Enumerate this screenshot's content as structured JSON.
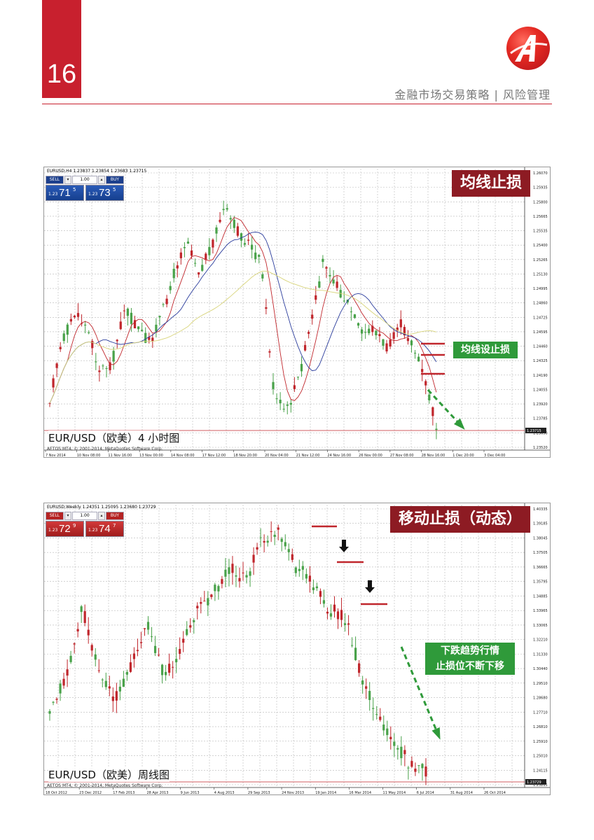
{
  "page": {
    "number": "16",
    "header_title": "金融市场交易策略 | 风险管理"
  },
  "charts": [
    {
      "id": "ma-stop",
      "info_line": "EURUSD,H4  1.23837 1.23854 1.23683 1.23715",
      "trade": {
        "sell": "SELL",
        "buy": "BUY",
        "lot": "1.00",
        "sell_small": "1.23",
        "sell_big": "71",
        "sell_sup": "5",
        "buy_small": "1.23",
        "buy_big": "73",
        "buy_sup": "5"
      },
      "badge": "均线止损",
      "annotation": "均线设止损",
      "caption": "EUR/USD（欧美）4 小时图",
      "copyright": "AETOS MT4, © 2001-2014, MetaQuotes Software Corp.",
      "y_ticks": [
        "1.26070",
        "1.25935",
        "1.25800",
        "1.25665",
        "1.25535",
        "1.25400",
        "1.25265",
        "1.25130",
        "1.24995",
        "1.24860",
        "1.24725",
        "1.24595",
        "1.24460",
        "1.24325",
        "1.24190",
        "1.24055",
        "1.23920",
        "1.23785",
        "1.23650",
        "1.23520"
      ],
      "current_price": "1.23715",
      "x_ticks": [
        "7 Nov 2014",
        "10 Nov 08:00",
        "11 Nov 16:00",
        "13 Nov 00:00",
        "14 Nov 08:00",
        "17 Nov 12:00",
        "18 Nov 20:00",
        "20 Nov 04:00",
        "21 Nov 12:00",
        "24 Nov 16:00",
        "26 Nov 00:00",
        "27 Nov 08:00",
        "28 Nov 16:00",
        "1 Dec 20:00",
        "3 Dec 04:00"
      ]
    },
    {
      "id": "trailing-stop",
      "info_line": "EURUSD,Weekly  1.24351 1.25095 1.23680 1.23729",
      "trade": {
        "sell": "SELL",
        "buy": "BUY",
        "lot": "1.00",
        "sell_small": "1.23",
        "sell_big": "72",
        "sell_sup": "9",
        "buy_small": "1.23",
        "buy_big": "74",
        "buy_sup": "7"
      },
      "badge": "移动止损（动态）",
      "annotation_line1": "下跌趋势行情",
      "annotation_line2": "止损位不断下移",
      "caption": "EUR/USD（欧美）周线图",
      "copyright": "AETOS MT4, © 2001-2014, MetaQuotes Software Corp.",
      "y_ticks": [
        "1.40335",
        "1.39185",
        "1.38045",
        "1.37505",
        "1.36665",
        "1.35795",
        "1.34885",
        "1.33965",
        "1.33065",
        "1.32210",
        "1.31330",
        "1.30440",
        "1.29510",
        "1.28680",
        "1.27710",
        "1.26810",
        "1.25910",
        "1.25010",
        "1.24115",
        "1.23215"
      ],
      "current_price": "1.23729",
      "x_ticks": [
        "18 Oct 2012",
        "23 Dec 2012",
        "17 Feb 2013",
        "28 Apr 2013",
        "9 Jun 2013",
        "4 Aug 2013",
        "29 Sep 2013",
        "24 Nov 2013",
        "19 Jan 2014",
        "16 Mar 2014",
        "11 May 2014",
        "6 Jul 2014",
        "31 Aug 2014",
        "26 Oct 2014"
      ]
    }
  ],
  "colors": {
    "brand_red": "#c8202e",
    "badge_dark_red": "#8d1b23",
    "bull_candle": "#49a24a",
    "bear_candle": "#c0262c",
    "annotation_green": "#2f9a3a"
  }
}
